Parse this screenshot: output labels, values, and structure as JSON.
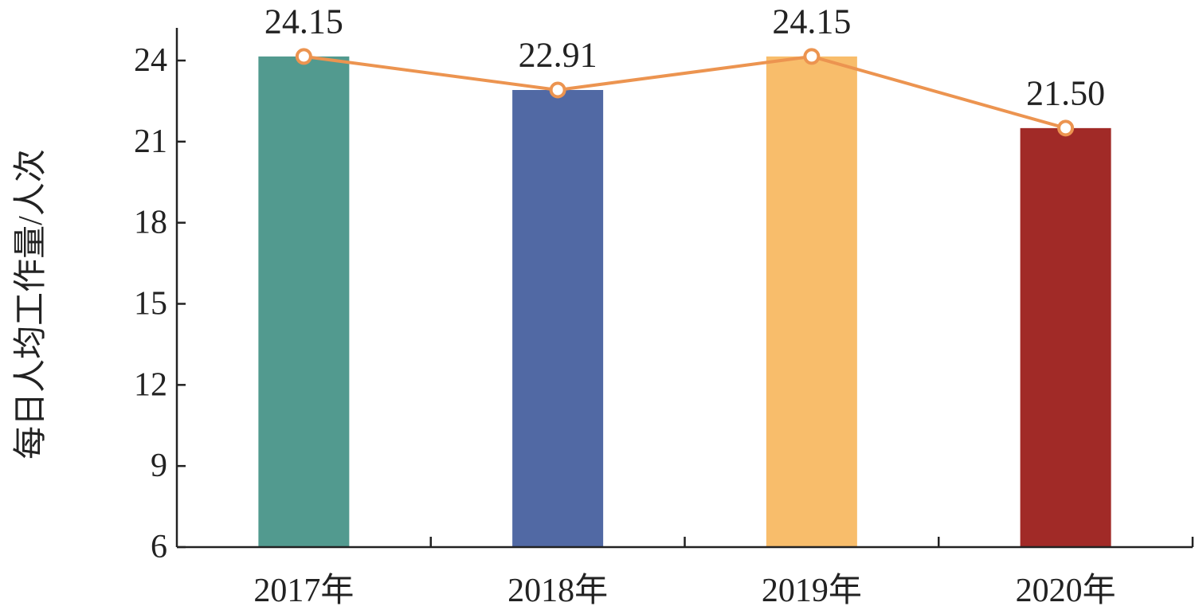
{
  "chart_data": {
    "type": "bar",
    "title": "",
    "ylabel": "每日人均工作量/人次",
    "xlabel": "",
    "categories": [
      "2017年",
      "2018年",
      "2019年",
      "2020年"
    ],
    "values": [
      24.15,
      22.91,
      24.15,
      21.5
    ],
    "data_labels": [
      "24.15",
      "22.91",
      "24.15",
      "21.50"
    ],
    "bar_colors": [
      "#529a8f",
      "#5169a4",
      "#f8bd6b",
      "#a12a27"
    ],
    "line_overlay": {
      "values": [
        24.15,
        22.91,
        24.15,
        21.5
      ],
      "color": "#ec9450",
      "marker": "open-circle"
    },
    "ylim": [
      6,
      25.5
    ],
    "yticks": [
      6,
      9,
      12,
      15,
      18,
      21,
      24
    ],
    "ytick_labels": [
      "6",
      "9",
      "12",
      "15",
      "18",
      "21",
      "24"
    ],
    "grid": false,
    "legend": "none"
  }
}
